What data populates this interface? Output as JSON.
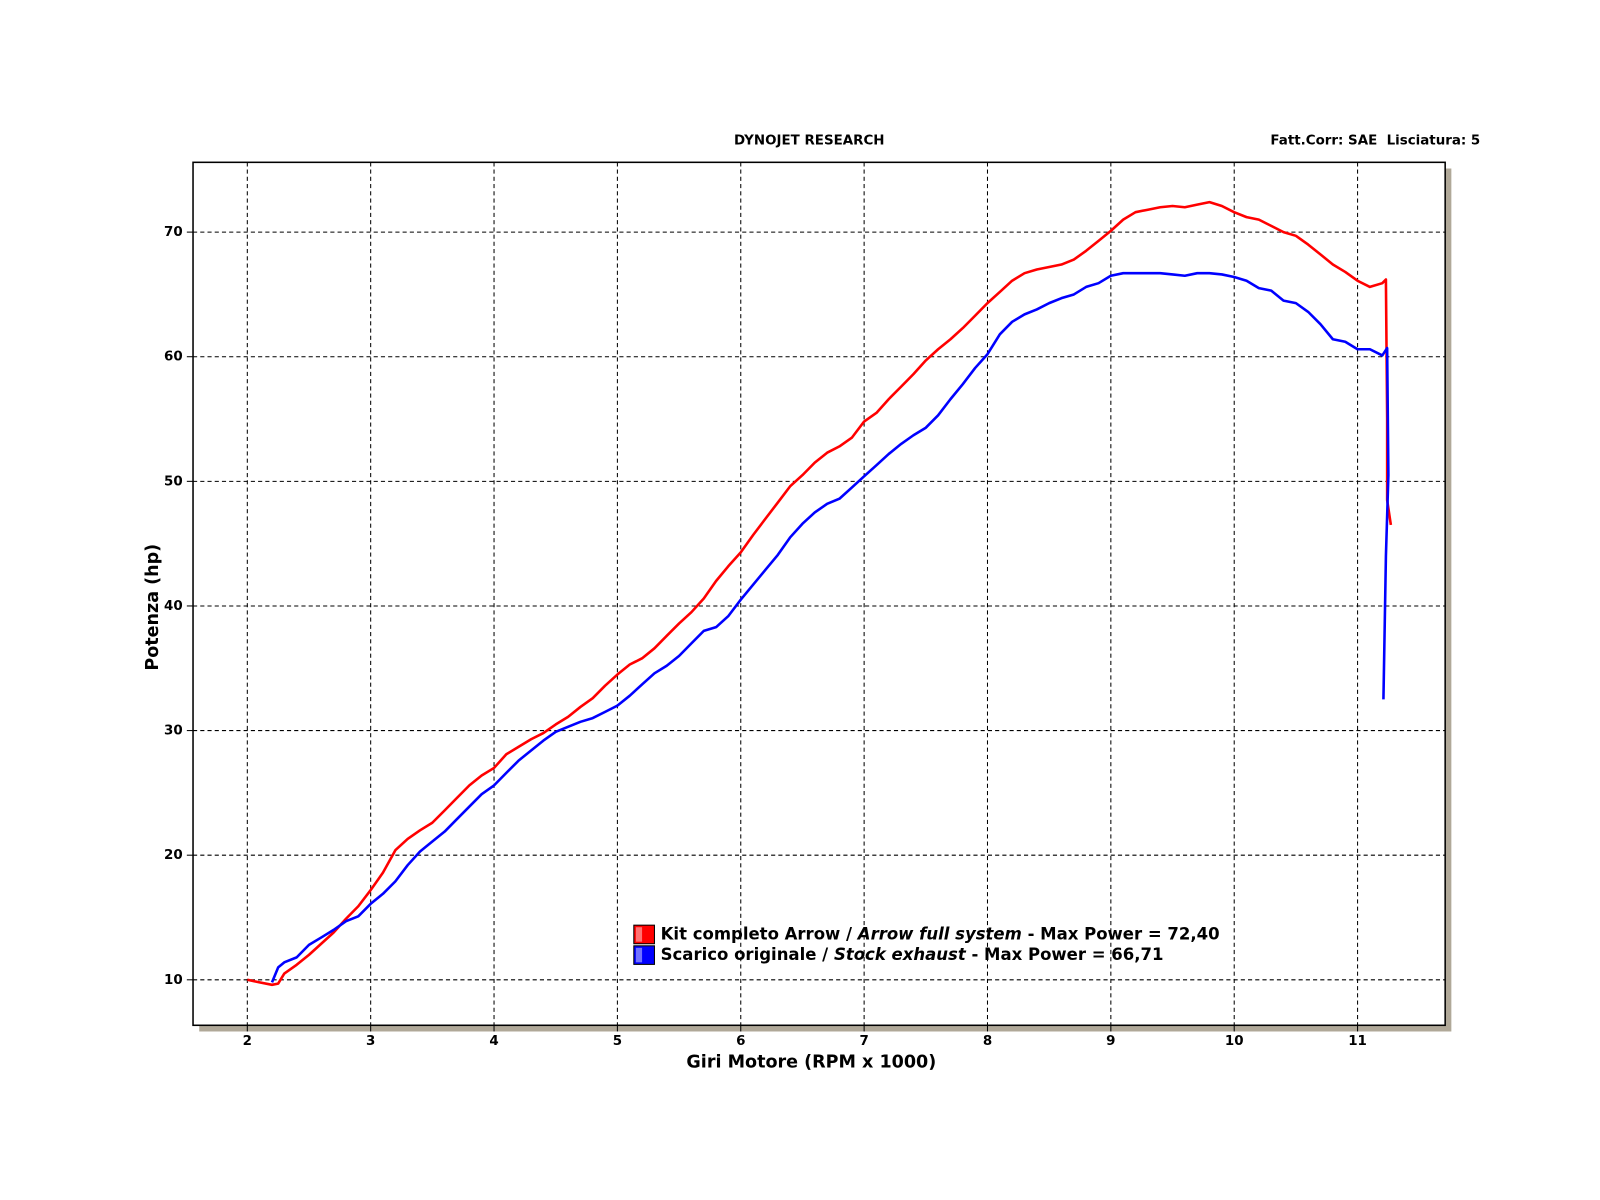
{
  "chart_data": {
    "type": "line",
    "title": "DYNOJET RESEARCH",
    "subtitle": "Fatt.Corr: SAE  Lisciatura: 5",
    "x_label": "Giri Motore (RPM x 1000)",
    "y_label": "Potenza (hp)",
    "xlim": [
      1.56,
      11.71
    ],
    "ylim": [
      6.35,
      75.6
    ],
    "xticks": [
      2,
      3,
      4,
      5,
      6,
      7,
      8,
      9,
      10,
      11
    ],
    "yticks": [
      10,
      20,
      30,
      40,
      50,
      60,
      70
    ],
    "grid": true,
    "legend": "bottom",
    "series": [
      {
        "name": "Kit completo Arrow / Arrow full system - Max Power = 72,40",
        "color": "#ff0000",
        "x": [
          2.0,
          2.1,
          2.2,
          2.25,
          2.3,
          2.4,
          2.5,
          2.6,
          2.7,
          2.8,
          2.9,
          3.0,
          3.1,
          3.2,
          3.3,
          3.4,
          3.5,
          3.6,
          3.7,
          3.8,
          3.9,
          4.0,
          4.1,
          4.2,
          4.3,
          4.4,
          4.5,
          4.6,
          4.7,
          4.8,
          4.9,
          5.0,
          5.1,
          5.2,
          5.3,
          5.4,
          5.5,
          5.6,
          5.7,
          5.8,
          5.9,
          6.0,
          6.1,
          6.2,
          6.3,
          6.4,
          6.5,
          6.6,
          6.7,
          6.8,
          6.9,
          7.0,
          7.1,
          7.2,
          7.3,
          7.4,
          7.5,
          7.6,
          7.7,
          7.8,
          7.9,
          8.0,
          8.1,
          8.2,
          8.3,
          8.4,
          8.5,
          8.6,
          8.7,
          8.8,
          8.9,
          9.0,
          9.1,
          9.2,
          9.3,
          9.4,
          9.5,
          9.6,
          9.7,
          9.8,
          9.9,
          10.0,
          10.1,
          10.2,
          10.3,
          10.4,
          10.5,
          10.6,
          10.7,
          10.8,
          10.9,
          11.0,
          11.1,
          11.2,
          11.23,
          11.24,
          11.24,
          11.27
        ],
        "values": [
          10.0,
          9.8,
          9.6,
          9.7,
          10.5,
          11.2,
          12,
          12.9,
          13.8,
          14.9,
          15.9,
          17.2,
          18.6,
          20.4,
          21.3,
          22,
          22.6,
          23.6,
          24.6,
          25.6,
          26.4,
          27,
          28.1,
          28.7,
          29.3,
          29.8,
          30.5,
          31.1,
          31.9,
          32.6,
          33.6,
          34.5,
          35.3,
          35.8,
          36.6,
          37.6,
          38.6,
          39.5,
          40.6,
          42,
          43.2,
          44.3,
          45.7,
          47,
          48.3,
          49.6,
          50.5,
          51.5,
          52.3,
          52.8,
          53.5,
          54.8,
          55.5,
          56.6,
          57.6,
          58.6,
          59.7,
          60.6,
          61.4,
          62.3,
          63.3,
          64.3,
          65.2,
          66.1,
          66.7,
          67,
          67.2,
          67.4,
          67.8,
          68.5,
          69.3,
          70.1,
          71,
          71.6,
          71.8,
          72,
          72.1,
          72,
          72.2,
          72.4,
          72.1,
          71.6,
          71.2,
          71,
          70.5,
          70,
          69.7,
          69,
          68.2,
          67.4,
          66.8,
          66.1,
          65.6,
          65.9,
          66.2,
          55,
          48.5,
          46.5
        ]
      },
      {
        "name": "Scarico originale / Stock exhaust - Max Power = 66,71",
        "color": "#0000ff",
        "x": [
          2.2,
          2.25,
          2.3,
          2.4,
          2.5,
          2.6,
          2.7,
          2.8,
          2.9,
          3.0,
          3.1,
          3.2,
          3.3,
          3.4,
          3.5,
          3.6,
          3.7,
          3.8,
          3.9,
          4.0,
          4.1,
          4.2,
          4.3,
          4.4,
          4.5,
          4.6,
          4.7,
          4.8,
          4.9,
          5.0,
          5.1,
          5.2,
          5.3,
          5.4,
          5.5,
          5.6,
          5.7,
          5.8,
          5.9,
          6.0,
          6.1,
          6.2,
          6.3,
          6.4,
          6.5,
          6.6,
          6.7,
          6.8,
          6.9,
          7.0,
          7.1,
          7.2,
          7.3,
          7.4,
          7.5,
          7.6,
          7.7,
          7.8,
          7.9,
          8.0,
          8.1,
          8.2,
          8.3,
          8.4,
          8.5,
          8.6,
          8.7,
          8.8,
          8.9,
          9.0,
          9.1,
          9.2,
          9.3,
          9.4,
          9.5,
          9.6,
          9.7,
          9.8,
          9.9,
          10.0,
          10.1,
          10.2,
          10.3,
          10.4,
          10.5,
          10.6,
          10.7,
          10.8,
          10.9,
          11.0,
          11.1,
          11.2,
          11.24,
          11.25,
          11.23,
          11.21
        ],
        "values": [
          9.8,
          11,
          11.4,
          11.8,
          12.8,
          13.4,
          14,
          14.7,
          15.1,
          16.1,
          16.9,
          17.9,
          19.2,
          20.3,
          21.1,
          21.9,
          22.9,
          23.9,
          24.9,
          25.6,
          26.6,
          27.6,
          28.4,
          29.2,
          29.9,
          30.3,
          30.7,
          31,
          31.5,
          32,
          32.8,
          33.7,
          34.6,
          35.2,
          36,
          37,
          38,
          38.3,
          39.2,
          40.5,
          41.7,
          42.9,
          44.1,
          45.5,
          46.6,
          47.5,
          48.2,
          48.6,
          49.5,
          50.4,
          51.3,
          52.2,
          53,
          53.7,
          54.3,
          55.3,
          56.6,
          57.8,
          59.1,
          60.2,
          61.8,
          62.8,
          63.4,
          63.8,
          64.3,
          64.7,
          65,
          65.6,
          65.9,
          66.5,
          66.7,
          66.7,
          66.7,
          66.7,
          66.6,
          66.5,
          66.7,
          66.7,
          66.6,
          66.4,
          66.1,
          65.5,
          65.3,
          64.5,
          64.3,
          63.6,
          62.6,
          61.4,
          61.2,
          60.6,
          60.6,
          60.1,
          60.7,
          50.5,
          44,
          32.5
        ]
      }
    ]
  }
}
